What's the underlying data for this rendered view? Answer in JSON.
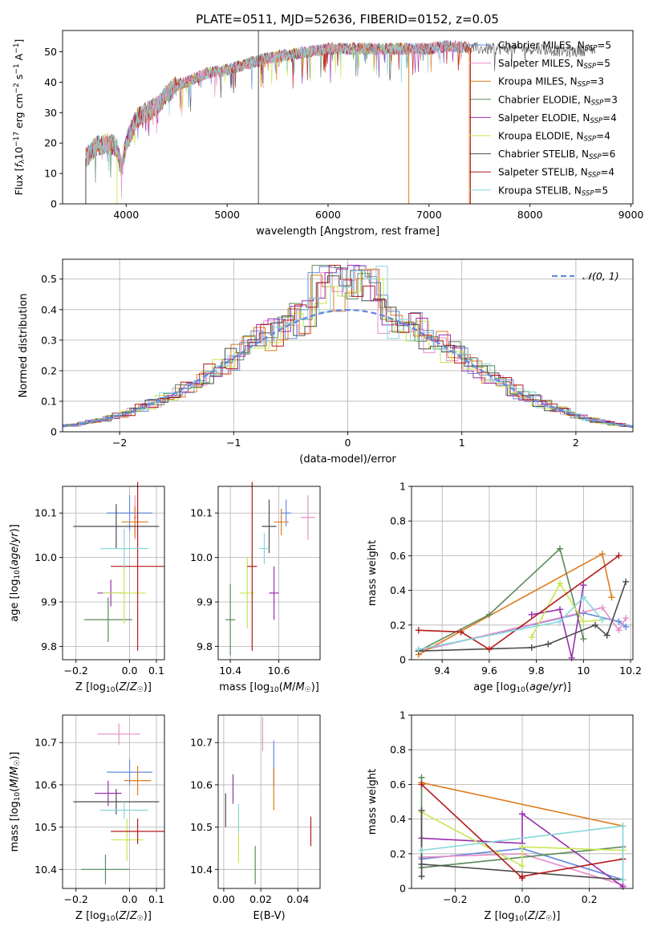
{
  "title": "PLATE=0511, MJD=52636, FIBERID=0152, z=0.05",
  "colors": {
    "Chabrier MILES": "#6688dd",
    "Salpeter MILES": "#e88ec8",
    "Kroupa MILES": "#e07b1d",
    "Chabrier ELODIE": "#5a8a5a",
    "Salpeter ELODIE": "#9a2fb0",
    "Kroupa ELODIE": "#c8e650",
    "Chabrier STELIB": "#4c4c4c",
    "Salpeter STELIB": "#b31a1a",
    "Kroupa STELIB": "#86d6dc"
  },
  "chart_data": [
    {
      "id": "spectrum",
      "type": "line",
      "title": "PLATE=0511, MJD=52636, FIBERID=0152, z=0.05",
      "xlabel": "wavelength [Angstrom, rest frame]",
      "ylabel": "Flux [f_λ10^-17 erg cm^-2 s^-1 A^-1]",
      "xlim": [
        3370,
        9020
      ],
      "ylim": [
        0,
        57
      ],
      "xticks": [
        4000,
        5000,
        6000,
        7000,
        8000,
        9000
      ],
      "yticks": [
        0,
        10,
        20,
        30,
        40,
        50
      ],
      "grid": false,
      "legend_position": "right",
      "legend": [
        {
          "name": "Chabrier MILES",
          "nssp": "5"
        },
        {
          "name": "Salpeter MILES",
          "nssp": "5"
        },
        {
          "name": "Kroupa MILES",
          "nssp": "3"
        },
        {
          "name": "Chabrier ELODIE",
          "nssp": "3"
        },
        {
          "name": "Salpeter ELODIE",
          "nssp": "4"
        },
        {
          "name": "Kroupa ELODIE",
          "nssp": "4"
        },
        {
          "name": "Chabrier STELIB",
          "nssp": "6"
        },
        {
          "name": "Salpeter STELIB",
          "nssp": "4"
        },
        {
          "name": "Kroupa STELIB",
          "nssp": "5"
        }
      ],
      "continuum": [
        [
          3600,
          15
        ],
        [
          3700,
          19
        ],
        [
          3800,
          20
        ],
        [
          3900,
          19
        ],
        [
          3950,
          12
        ],
        [
          4000,
          20
        ],
        [
          4100,
          28
        ],
        [
          4200,
          30
        ],
        [
          4300,
          32
        ],
        [
          4400,
          36
        ],
        [
          4500,
          39
        ],
        [
          4600,
          40
        ],
        [
          4800,
          43
        ],
        [
          5000,
          44
        ],
        [
          5200,
          46
        ],
        [
          5400,
          48
        ],
        [
          5600,
          49
        ],
        [
          5800,
          50
        ],
        [
          6000,
          51
        ],
        [
          6200,
          51
        ],
        [
          6400,
          51
        ],
        [
          6600,
          51
        ],
        [
          6800,
          51
        ],
        [
          7000,
          51
        ],
        [
          7200,
          52
        ],
        [
          7500,
          51
        ],
        [
          7800,
          51
        ],
        [
          8100,
          51
        ],
        [
          8400,
          50
        ],
        [
          8650,
          51
        ]
      ]
    },
    {
      "id": "residuals",
      "type": "histogram",
      "xlabel": "(data-model)/error",
      "ylabel": "Normed distribution",
      "xlim": [
        -2.5,
        2.5
      ],
      "ylim": [
        0,
        0.565
      ],
      "xticks": [
        -2,
        -1,
        0,
        1,
        2
      ],
      "yticks": [
        0.0,
        0.1,
        0.2,
        0.3,
        0.4,
        0.5
      ],
      "grid": true,
      "legend": "𝒩(0, 1)",
      "legend_position": "top-right",
      "reference": "standard normal N(0,1)"
    },
    {
      "id": "age-vs-Z",
      "type": "errorbar",
      "xlabel": "Z [log10(Z/Z☉)]",
      "ylabel": "age  [log10(age/yr)]",
      "xlim": [
        -0.25,
        0.13
      ],
      "ylim": [
        9.77,
        10.16
      ],
      "xticks": [
        -0.2,
        0.0,
        0.1
      ],
      "yticks": [
        9.8,
        9.9,
        10.0,
        10.1
      ],
      "points": [
        {
          "series": "Chabrier MILES",
          "x": 0.0,
          "xerr": 0.085,
          "y": 10.1,
          "yerr": 0.04
        },
        {
          "series": "Salpeter MILES",
          "x": 0.02,
          "xerr": 0.005,
          "y": 10.09,
          "yerr": 0.05
        },
        {
          "series": "Kroupa MILES",
          "x": 0.02,
          "xerr": 0.05,
          "y": 10.08,
          "yerr": 0.035
        },
        {
          "series": "Chabrier ELODIE",
          "x": -0.08,
          "xerr": 0.09,
          "y": 9.86,
          "yerr": 0.05
        },
        {
          "series": "Salpeter ELODIE",
          "x": -0.07,
          "xerr": 0.05,
          "y": 9.92,
          "yerr": 0.03
        },
        {
          "series": "Kroupa ELODIE",
          "x": -0.02,
          "xerr": 0.08,
          "y": 9.92,
          "yerr": 0.07
        },
        {
          "series": "Chabrier STELIB",
          "x": -0.05,
          "xerr": 0.16,
          "y": 10.07,
          "yerr": 0.05
        },
        {
          "series": "Salpeter STELIB",
          "x": 0.03,
          "xerr": 0.1,
          "y": 9.98,
          "yerr": 0.19
        },
        {
          "series": "Kroupa STELIB",
          "x": -0.02,
          "xerr": 0.09,
          "y": 10.02,
          "yerr": 0.045
        }
      ]
    },
    {
      "id": "age-vs-mass",
      "type": "errorbar",
      "xlabel": "mass [log10(M/M☉)]",
      "ylabel": "",
      "xlim": [
        10.35,
        10.77
      ],
      "ylim": [
        9.77,
        10.16
      ],
      "xticks": [
        10.4,
        10.6
      ],
      "yticks": [
        9.8,
        9.9,
        10.0,
        10.1
      ],
      "points": [
        {
          "series": "Chabrier MILES",
          "x": 10.63,
          "xerr": 0.02,
          "y": 10.1,
          "yerr": 0.03
        },
        {
          "series": "Salpeter MILES",
          "x": 10.72,
          "xerr": 0.03,
          "y": 10.09,
          "yerr": 0.05
        },
        {
          "series": "Kroupa MILES",
          "x": 10.61,
          "xerr": 0.03,
          "y": 10.08,
          "yerr": 0.03
        },
        {
          "series": "Chabrier ELODIE",
          "x": 10.4,
          "xerr": 0.02,
          "y": 9.86,
          "yerr": 0.08
        },
        {
          "series": "Salpeter ELODIE",
          "x": 10.58,
          "xerr": 0.02,
          "y": 9.92,
          "yerr": 0.06
        },
        {
          "series": "Kroupa ELODIE",
          "x": 10.47,
          "xerr": 0.03,
          "y": 9.92,
          "yerr": 0.08
        },
        {
          "series": "Chabrier STELIB",
          "x": 10.56,
          "xerr": 0.03,
          "y": 10.07,
          "yerr": 0.06
        },
        {
          "series": "Salpeter STELIB",
          "x": 10.49,
          "xerr": 0.02,
          "y": 9.98,
          "yerr": 0.19
        },
        {
          "series": "Kroupa STELIB",
          "x": 10.54,
          "xerr": 0.02,
          "y": 10.02,
          "yerr": 0.035
        }
      ]
    },
    {
      "id": "weight-vs-age",
      "type": "line",
      "xlabel": "age  [log10(age/yr)]",
      "ylabel": "mass weight",
      "xlim": [
        9.27,
        10.21
      ],
      "ylim": [
        0,
        1.0
      ],
      "xticks": [
        9.4,
        9.6,
        9.8,
        10.0,
        10.2
      ],
      "yticks": [
        0.0,
        0.2,
        0.4,
        0.6,
        0.8,
        1.0
      ],
      "grid": true,
      "series": [
        {
          "series": "Chabrier MILES",
          "points": [
            [
              9.3,
              0.05
            ],
            [
              10.0,
              0.27
            ],
            [
              10.15,
              0.22
            ],
            [
              10.18,
              0.19
            ]
          ]
        },
        {
          "series": "Salpeter MILES",
          "points": [
            [
              9.3,
              0.05
            ],
            [
              10.08,
              0.3
            ],
            [
              10.15,
              0.17
            ],
            [
              10.18,
              0.24
            ]
          ]
        },
        {
          "series": "Kroupa MILES",
          "points": [
            [
              9.3,
              0.03
            ],
            [
              10.08,
              0.61
            ],
            [
              10.12,
              0.36
            ]
          ]
        },
        {
          "series": "Chabrier ELODIE",
          "points": [
            [
              9.3,
              0.05
            ],
            [
              9.6,
              0.26
            ],
            [
              9.9,
              0.64
            ],
            [
              10.0,
              0.12
            ]
          ]
        },
        {
          "series": "Salpeter ELODIE",
          "points": [
            [
              9.78,
              0.26
            ],
            [
              9.9,
              0.29
            ],
            [
              9.95,
              0.01
            ],
            [
              10.0,
              0.43
            ]
          ]
        },
        {
          "series": "Kroupa ELODIE",
          "points": [
            [
              9.78,
              0.13
            ],
            [
              9.9,
              0.44
            ],
            [
              10.0,
              0.22
            ],
            [
              10.08,
              0.23
            ]
          ]
        },
        {
          "series": "Chabrier STELIB",
          "points": [
            [
              9.3,
              0.05
            ],
            [
              9.78,
              0.07
            ],
            [
              9.85,
              0.09
            ],
            [
              10.05,
              0.2
            ],
            [
              10.1,
              0.14
            ],
            [
              10.18,
              0.45
            ]
          ]
        },
        {
          "series": "Salpeter STELIB",
          "points": [
            [
              9.3,
              0.17
            ],
            [
              9.48,
              0.16
            ],
            [
              9.6,
              0.06
            ],
            [
              10.15,
              0.6
            ]
          ]
        },
        {
          "series": "Kroupa STELIB",
          "points": [
            [
              9.3,
              0.06
            ],
            [
              9.9,
              0.22
            ],
            [
              10.0,
              0.36
            ],
            [
              10.08,
              0.23
            ]
          ]
        }
      ]
    },
    {
      "id": "mass-vs-Z",
      "type": "errorbar",
      "xlabel": "Z [log10(Z/Z☉)]",
      "ylabel": "mass [log10(M/M☉)]",
      "xlim": [
        -0.25,
        0.13
      ],
      "ylim": [
        10.355,
        10.765
      ],
      "xticks": [
        -0.2,
        0.0,
        0.1
      ],
      "yticks": [
        10.4,
        10.5,
        10.6,
        10.7
      ],
      "points": [
        {
          "series": "Chabrier MILES",
          "x": 0.0,
          "xerr": 0.085,
          "y": 10.63,
          "yerr": 0.03
        },
        {
          "series": "Salpeter MILES",
          "x": -0.04,
          "xerr": 0.08,
          "y": 10.72,
          "yerr": 0.025
        },
        {
          "series": "Kroupa MILES",
          "x": 0.03,
          "xerr": 0.05,
          "y": 10.61,
          "yerr": 0.035
        },
        {
          "series": "Chabrier ELODIE",
          "x": -0.09,
          "xerr": 0.09,
          "y": 10.4,
          "yerr": 0.035
        },
        {
          "series": "Salpeter ELODIE",
          "x": -0.08,
          "xerr": 0.05,
          "y": 10.58,
          "yerr": 0.03
        },
        {
          "series": "Kroupa ELODIE",
          "x": -0.01,
          "xerr": 0.06,
          "y": 10.47,
          "yerr": 0.05
        },
        {
          "series": "Chabrier STELIB",
          "x": -0.05,
          "xerr": 0.16,
          "y": 10.56,
          "yerr": 0.03
        },
        {
          "series": "Salpeter STELIB",
          "x": 0.03,
          "xerr": 0.1,
          "y": 10.49,
          "yerr": 0.03
        },
        {
          "series": "Kroupa STELIB",
          "x": -0.02,
          "xerr": 0.09,
          "y": 10.54,
          "yerr": 0.02
        }
      ]
    },
    {
      "id": "mass-vs-EBV",
      "type": "errorbar",
      "xlabel": "E(B-V)",
      "ylabel": "",
      "xlim": [
        -0.003,
        0.052
      ],
      "ylim": [
        10.355,
        10.765
      ],
      "xticks": [
        0.0,
        0.02,
        0.04
      ],
      "yticks": [
        10.4,
        10.5,
        10.6,
        10.7
      ],
      "points": [
        {
          "series": "Chabrier MILES",
          "x": 0.027,
          "y": 10.65,
          "yerr": 0.055
        },
        {
          "series": "Salpeter MILES",
          "x": 0.021,
          "y": 10.72,
          "yerr": 0.04
        },
        {
          "series": "Kroupa MILES",
          "x": 0.027,
          "y": 10.59,
          "yerr": 0.05
        },
        {
          "series": "Chabrier ELODIE",
          "x": 0.017,
          "y": 10.41,
          "yerr": 0.045
        },
        {
          "series": "Salpeter ELODIE",
          "x": 0.005,
          "y": 10.59,
          "yerr": 0.035
        },
        {
          "series": "Kroupa ELODIE",
          "x": 0.008,
          "y": 10.48,
          "yerr": 0.065
        },
        {
          "series": "Chabrier STELIB",
          "x": 0.001,
          "y": 10.54,
          "yerr": 0.04
        },
        {
          "series": "Salpeter STELIB",
          "x": 0.047,
          "y": 10.49,
          "yerr": 0.035
        },
        {
          "series": "Kroupa STELIB",
          "x": 0.008,
          "y": 10.52,
          "yerr": 0.035
        }
      ]
    },
    {
      "id": "weight-vs-Z",
      "type": "line",
      "xlabel": "Z [log10(Z/Z☉)]",
      "ylabel": "mass weight",
      "xlim": [
        -0.33,
        0.33
      ],
      "ylim": [
        0,
        1.0
      ],
      "xticks": [
        -0.2,
        0.0,
        0.2
      ],
      "yticks": [
        0.0,
        0.2,
        0.4,
        0.6,
        0.8,
        1.0
      ],
      "grid": true,
      "series": [
        {
          "series": "Chabrier MILES",
          "points": [
            [
              -0.3,
              0.17
            ],
            [
              0.0,
              0.23
            ],
            [
              0.3,
              0.05
            ]
          ]
        },
        {
          "series": "Salpeter MILES",
          "points": [
            [
              -0.3,
              0.18
            ],
            [
              0.0,
              0.2
            ],
            [
              0.3,
              0.02
            ]
          ]
        },
        {
          "series": "Kroupa MILES",
          "points": [
            [
              -0.3,
              0.61
            ],
            [
              0.3,
              0.36
            ]
          ]
        },
        {
          "series": "Chabrier ELODIE",
          "points": [
            [
              -0.3,
              0.64
            ],
            [
              -0.3,
              0.12
            ],
            [
              0.3,
              0.24
            ]
          ]
        },
        {
          "series": "Salpeter ELODIE",
          "points": [
            [
              -0.3,
              0.29
            ],
            [
              0.0,
              0.26
            ],
            [
              0.0,
              0.43
            ],
            [
              0.3,
              0.01
            ]
          ]
        },
        {
          "series": "Kroupa ELODIE",
          "points": [
            [
              -0.3,
              0.44
            ],
            [
              0.0,
              0.13
            ],
            [
              0.0,
              0.24
            ],
            [
              0.3,
              0.22
            ]
          ]
        },
        {
          "series": "Chabrier STELIB",
          "points": [
            [
              -0.3,
              0.07
            ],
            [
              -0.3,
              0.45
            ],
            [
              -0.3,
              0.14
            ],
            [
              0.3,
              0.05
            ]
          ]
        },
        {
          "series": "Salpeter STELIB",
          "points": [
            [
              -0.3,
              0.6
            ],
            [
              0.0,
              0.06
            ],
            [
              0.0,
              0.07
            ],
            [
              0.3,
              0.17
            ]
          ]
        },
        {
          "series": "Kroupa STELIB",
          "points": [
            [
              -0.3,
              0.22
            ],
            [
              0.3,
              0.36
            ],
            [
              0.3,
              0.05
            ]
          ]
        }
      ]
    }
  ]
}
